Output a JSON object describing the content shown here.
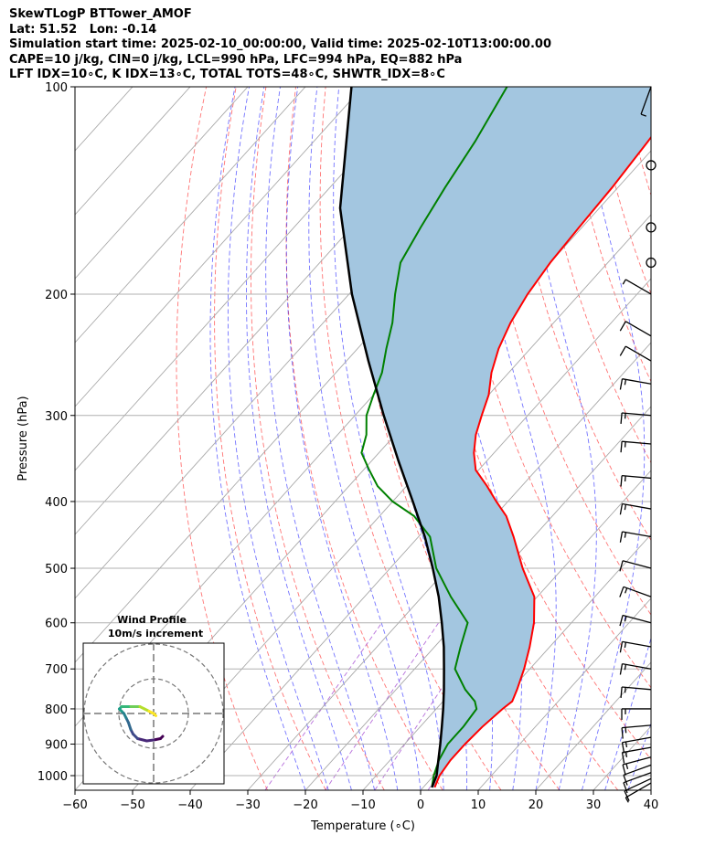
{
  "header": {
    "lines": [
      "SkewTLogP BTTower_AMOF",
      "Lat: 51.52   Lon: -0.14",
      "Simulation start time: 2025-02-10_00:00:00, Valid time: 2025-02-10T13:00:00.00",
      "CAPE=10 j/kg, CIN=0 j/kg, LCL=990 hPa, LFC=994 hPa, EQ=882 hPa",
      "LFT IDX=10∘C, K IDX=13∘C, TOTAL TOTS=48∘C, SHWTR_IDX=8∘C"
    ]
  },
  "colors": {
    "temperature": "#ff0000",
    "dewpoint": "#008000",
    "parcel": "#000000",
    "cape_fill": "#a3c6e0",
    "dry_adiabat": "#ff0000",
    "moist_adiabat": "#0000ff",
    "mixing_ratio": "#9932cc",
    "isotherm": "#808080",
    "grid": "#b0b0b0"
  },
  "chart_data": {
    "type": "line",
    "title": "",
    "xlabel": "Temperature (∘C)",
    "ylabel": "Pressure (hPa)",
    "x_ticks": [
      "−60",
      "−50",
      "−40",
      "−30",
      "−20",
      "−10",
      "0",
      "10",
      "20",
      "30",
      "40"
    ],
    "x_tick_values": [
      -60,
      -50,
      -40,
      -30,
      -20,
      -10,
      0,
      10,
      20,
      30,
      40
    ],
    "y_ticks": [
      "100",
      "200",
      "300",
      "400",
      "500",
      "600",
      "700",
      "800",
      "900",
      "1000"
    ],
    "y_tick_values": [
      100,
      200,
      300,
      400,
      500,
      600,
      700,
      800,
      900,
      1000
    ],
    "xlim": [
      -60,
      40
    ],
    "ylim": [
      1050,
      100
    ],
    "y_scale": "log",
    "skew": "skew-T log-p",
    "grid": true,
    "series": [
      {
        "key": "temperature",
        "pressure": [
          1040,
          1000,
          950,
          900,
          850,
          800,
          780,
          750,
          700,
          650,
          600,
          550,
          500,
          450,
          420,
          400,
          380,
          360,
          340,
          320,
          300,
          280,
          260,
          240,
          220,
          200,
          180,
          160,
          140,
          120,
          100
        ],
        "values": [
          2,
          1,
          0.5,
          0.5,
          0.8,
          1.5,
          2,
          1,
          -1,
          -3.5,
          -6.5,
          -10.5,
          -17,
          -23.5,
          -28,
          -32,
          -36,
          -40.5,
          -43.5,
          -46,
          -48,
          -50,
          -53,
          -55.5,
          -57.5,
          -59,
          -60,
          -60.5,
          -61,
          -62,
          -63.5
        ]
      },
      {
        "key": "dewpoint",
        "pressure": [
          1040,
          1000,
          950,
          900,
          850,
          800,
          780,
          750,
          700,
          650,
          600,
          550,
          500,
          450,
          420,
          400,
          380,
          360,
          340,
          320,
          300,
          280,
          260,
          240,
          220,
          200,
          180,
          160,
          140,
          120,
          100
        ],
        "values": [
          1.5,
          0,
          -1.5,
          -2.5,
          -2.5,
          -3,
          -4.5,
          -8,
          -13,
          -15.5,
          -18,
          -25,
          -32,
          -38,
          -44,
          -50,
          -55,
          -59,
          -63,
          -65,
          -68,
          -70,
          -72,
          -75,
          -78,
          -82,
          -86,
          -88,
          -90,
          -92,
          -95
        ]
      },
      {
        "key": "parcel",
        "pressure": [
          1040,
          1000,
          950,
          900,
          850,
          800,
          750,
          700,
          650,
          600,
          550,
          500,
          450,
          400,
          350,
          300,
          250,
          200,
          150,
          100
        ],
        "values": [
          1.5,
          0.5,
          -1.6,
          -3.8,
          -6.2,
          -8.8,
          -11.7,
          -14.9,
          -18.4,
          -22.5,
          -27.1,
          -32.6,
          -38.9,
          -46.5,
          -55.2,
          -65,
          -76.2,
          -89.5,
          -105,
          -122
        ]
      }
    ],
    "wind_barbs": {
      "pressure": [
        1025,
        1010,
        990,
        965,
        940,
        910,
        880,
        845,
        800,
        750,
        700,
        650,
        600,
        550,
        500,
        450,
        410,
        370,
        330,
        300,
        270,
        250,
        230,
        200,
        180,
        160,
        130,
        100
      ],
      "speed_kt": [
        8,
        10,
        12,
        12,
        15,
        15,
        18,
        18,
        18,
        15,
        15,
        15,
        15,
        15,
        10,
        15,
        15,
        15,
        15,
        15,
        15,
        10,
        10,
        8,
        0,
        0,
        0,
        5
      ],
      "direction_deg": [
        240,
        245,
        250,
        250,
        255,
        260,
        260,
        265,
        270,
        275,
        280,
        280,
        285,
        290,
        285,
        280,
        280,
        275,
        275,
        275,
        280,
        300,
        300,
        300,
        0,
        0,
        0,
        200
      ]
    },
    "inset": {
      "title": "Wind Profile",
      "subtitle": "10m/s increment",
      "u": [
        2,
        1.5,
        0,
        -1.5,
        -3.5,
        -4.5,
        -5,
        -5.5,
        -6,
        -6.5,
        -7,
        -7.5,
        -7,
        -6,
        -5,
        -4,
        -3,
        -2,
        -1,
        0,
        0.5
      ],
      "v": [
        -5,
        -5.5,
        -5.8,
        -6,
        -5.5,
        -4.5,
        -3.5,
        -2,
        -1,
        0,
        0.5,
        1,
        1.5,
        1.5,
        1.5,
        1.5,
        1.5,
        1,
        0.5,
        0,
        -0.5
      ]
    }
  }
}
